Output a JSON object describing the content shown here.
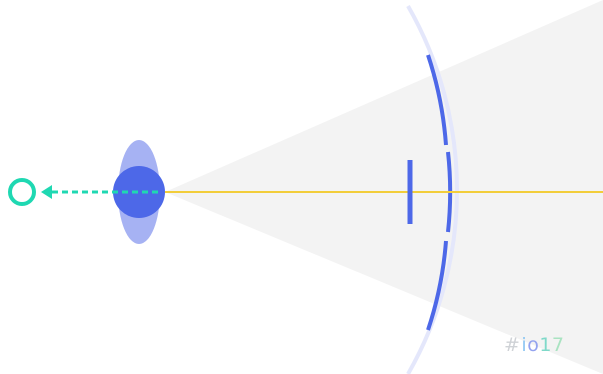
{
  "colors": {
    "background": "#ffffff",
    "cone": "#f2f2f2",
    "arc_faint": "#e4e7fb",
    "arc_strong": "#4d68e8",
    "axis_line": "#f2cd3a",
    "lens_body": "#4d68e8",
    "lens_halo": "#a6b2f3",
    "arrow_accent": "#1fd8b2",
    "marker_bar": "#4d68e8"
  },
  "hashtag": {
    "hash": "#",
    "i": "i",
    "o": "o",
    "one": "1",
    "seven": "7"
  },
  "icons": {
    "target_ring": "open-circle-icon",
    "arrow": "left-arrow-icon"
  }
}
